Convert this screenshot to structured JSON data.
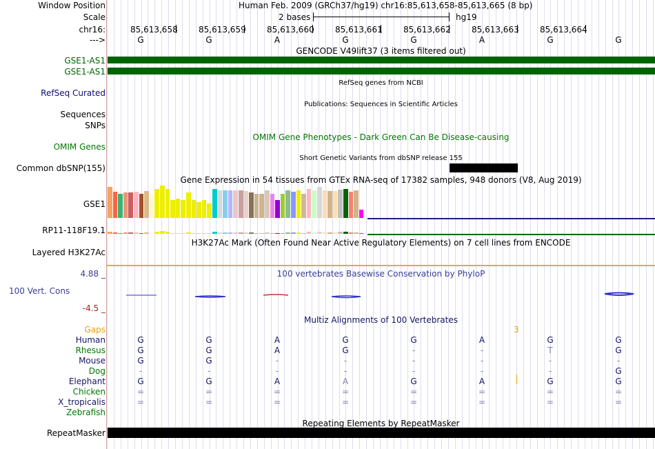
{
  "labels": {
    "window_position": "Window Position",
    "scale": "Scale",
    "chrom": "chr16:",
    "arrow": "--->",
    "gse1_as1_a": "GSE1-AS1",
    "gse1_as1_b": "GSE1-AS1",
    "refseq": "RefSeq Curated",
    "sequences": "Sequences",
    "snps": "SNPs",
    "omim": "OMIM Genes",
    "common_dbsnp": "Common dbSNP(155)",
    "gse1": "GSE1",
    "rp11": "RP11-118F19.1",
    "layered": "Layered H3K27Ac",
    "phylop_max": "4.88 _",
    "cons": "100 Vert. Cons",
    "phylop_min": "-4.5 _",
    "gaps": "Gaps",
    "species": [
      "Human",
      "Rhesus",
      "Mouse",
      "Dog",
      "Elephant",
      "Chicken",
      "X_tropicalis",
      "Zebrafish"
    ],
    "repeatmasker": "RepeatMasker"
  },
  "header": {
    "position_text": "Human Feb. 2009 (GRCh37/hg19)   chr16:85,613,658-85,613,665 (8 bp)",
    "scale_text": "2 bases",
    "assembly": "hg19",
    "coords": [
      "85,613,658",
      "85,613,659",
      "85,613,660",
      "85,613,661",
      "85,613,662",
      "85,613,663",
      "85,613,664"
    ],
    "bases": [
      "G",
      "G",
      "A",
      "G",
      "G",
      "A",
      "G",
      "G"
    ]
  },
  "tracks": {
    "gencode": "GENCODE V49lift37 (3 items filtered out)",
    "refseq_title": "RefSeq genes from NCBI",
    "publications": "Publications: Sequences in Scientific Articles",
    "omim_title": "OMIM Gene Phenotypes - Dark Green Can Be Disease-causing",
    "dbsnp_title": "Short Genetic Variants from dbSNP release 155",
    "gtex_title": "Gene Expression in 54 tissues from GTEx RNA-seq of 17382 samples, 948 donors (V8, Aug 2019)",
    "h3k27_title": "H3K27Ac Mark (Often Found Near Active Regulatory Elements) on 7 cell lines from ENCODE",
    "phylop_title": "100 vertebrates Basewise Conservation by PhyloP",
    "multiz_title": "Multiz Alignments of 100 Vertebrates",
    "gap_count": "3",
    "repeat_title": "Repeating Elements by RepeatMasker"
  },
  "alignment": {
    "Human": [
      "G",
      "G",
      "A",
      "G",
      "G",
      "A",
      "G",
      "G"
    ],
    "Rhesus": [
      "G",
      "G",
      "A",
      "G",
      "-",
      "-",
      "T",
      "G"
    ],
    "Mouse": [
      "G",
      "G",
      "-",
      "-",
      "-",
      "-",
      "-",
      "-"
    ],
    "Dog": [
      "-",
      "-",
      "-",
      "-",
      "-",
      "-",
      "-",
      "G"
    ],
    "Elephant": [
      "G",
      "G",
      "A",
      "A",
      "G",
      "A",
      "G",
      "G"
    ],
    "Chicken": [
      "=",
      "=",
      "=",
      "=",
      "=",
      "=",
      "=",
      "="
    ],
    "X_tropicalis": [
      "=",
      "=",
      "=",
      "=",
      "=",
      "=",
      "=",
      "="
    ],
    "Zebrafish": [
      "",
      "",
      "",
      "",
      "",
      "",
      "",
      ""
    ]
  },
  "colors": {
    "gencode_green": "#006400",
    "refseq_blue": "#0c0c78",
    "omim_green": "#007800",
    "phylop_blue": "#3c3c96",
    "phylop_red": "#96281e",
    "gaps_orange": "#e6a000",
    "species_navy": "#141464",
    "species_green": "#007800",
    "gtex_baseline": "#1e1e78"
  },
  "gtex": [
    {
      "v": 0.95,
      "c": "#f4a460"
    },
    {
      "v": 0.8,
      "c": "#ff6347"
    },
    {
      "v": 0.75,
      "c": "#3cb371"
    },
    {
      "v": 0.78,
      "c": "#e9967a"
    },
    {
      "v": 0.78,
      "c": "#cd5c5c"
    },
    {
      "v": 0.8,
      "c": "#ffb6c1"
    },
    {
      "v": 0.75,
      "c": "#a0522d"
    },
    {
      "v": 0.82,
      "c": "#deb887"
    },
    {
      "v": 0.75,
      "c": "#fff8dc"
    },
    {
      "v": 0.9,
      "c": "#eeee00"
    },
    {
      "v": 1.0,
      "c": "#eeee00"
    },
    {
      "v": 0.9,
      "c": "#eeee00"
    },
    {
      "v": 0.55,
      "c": "#eeee00"
    },
    {
      "v": 0.6,
      "c": "#eeee00"
    },
    {
      "v": 0.55,
      "c": "#eeee00"
    },
    {
      "v": 0.78,
      "c": "#eeee00"
    },
    {
      "v": 0.55,
      "c": "#eeee00"
    },
    {
      "v": 0.5,
      "c": "#eeee00"
    },
    {
      "v": 0.55,
      "c": "#eeee00"
    },
    {
      "v": 0.45,
      "c": "#eeee00"
    },
    {
      "v": 0.9,
      "c": "#00cdcd"
    },
    {
      "v": 0.85,
      "c": "#d8d8d8"
    },
    {
      "v": 0.85,
      "c": "#87ceeb"
    },
    {
      "v": 0.85,
      "c": "#b4b4ff"
    },
    {
      "v": 0.85,
      "c": "#e6c8c8"
    },
    {
      "v": 0.85,
      "c": "#c8a0a0"
    },
    {
      "v": 0.82,
      "c": "#e6d2c8"
    },
    {
      "v": 0.78,
      "c": "#8b7355"
    },
    {
      "v": 0.75,
      "c": "#c8b496"
    },
    {
      "v": 0.75,
      "c": "#d2b48c"
    },
    {
      "v": 0.85,
      "c": "#d8c8b4"
    },
    {
      "v": 0.75,
      "c": "#ee82ee"
    },
    {
      "v": 0.55,
      "c": "#9400d3"
    },
    {
      "v": 0.75,
      "c": "#9acd32"
    },
    {
      "v": 0.85,
      "c": "#8fbc8f"
    },
    {
      "v": 0.8,
      "c": "#8c96ff"
    },
    {
      "v": 0.85,
      "c": "#eeee00"
    },
    {
      "v": 0.75,
      "c": "#cdb79e"
    },
    {
      "v": 0.9,
      "c": "#ffb6c1"
    },
    {
      "v": 0.85,
      "c": "#c8ffc8"
    },
    {
      "v": 0.95,
      "c": "#d8d8d8"
    },
    {
      "v": 0.85,
      "c": "#ffdab9"
    },
    {
      "v": 0.82,
      "c": "#d2b48c"
    },
    {
      "v": 0.82,
      "c": "#ffdead"
    },
    {
      "v": 0.88,
      "c": "#c0c0c0"
    },
    {
      "v": 0.9,
      "c": "#006400"
    },
    {
      "v": 0.8,
      "c": "#fa8072"
    },
    {
      "v": 0.85,
      "c": "#d2b48c"
    },
    {
      "v": 0.25,
      "c": "#ff00ff"
    }
  ]
}
